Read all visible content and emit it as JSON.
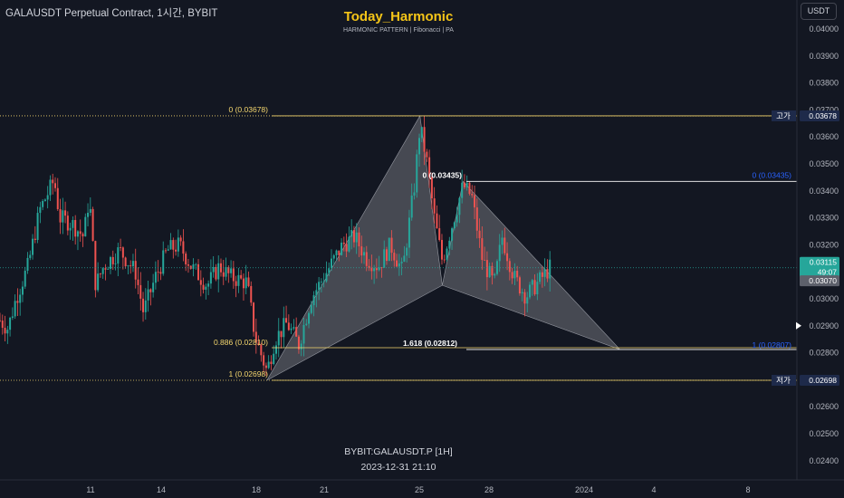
{
  "header": {
    "symbol_line": "GALAUSDT Perpetual Contract, 1시간, BYBIT",
    "title": "Today_Harmonic",
    "subtitle": "HARMONIC PATTERN | Fibonacci | PA",
    "currency_button": "USDT"
  },
  "watermark": {
    "line1": "BYBIT:GALAUSDT.P [1H]",
    "line2": "2023-12-31 21:10"
  },
  "price_axis": {
    "labels": [
      "0.04000",
      "0.03900",
      "0.03800",
      "0.03700",
      "0.03600",
      "0.03500",
      "0.03400",
      "0.03300",
      "0.03200",
      "0.03100",
      "0.03000",
      "0.02900",
      "0.02800",
      "0.02700",
      "0.02600",
      "0.02500",
      "0.02400"
    ]
  },
  "price_tags": {
    "high": {
      "name": "고가",
      "value": "0.03678"
    },
    "low": {
      "name": "저가",
      "value": "0.02698"
    },
    "last": {
      "value": "0.03115",
      "countdown": "49:07"
    },
    "prev": {
      "value": "0.03070"
    }
  },
  "time_axis": {
    "labels": [
      "11",
      "14",
      "18",
      "21",
      "25",
      "28",
      "2024",
      "4",
      "8"
    ]
  },
  "fib_labels": {
    "top_left": "0 (0.03678)",
    "mid_left": "0.886 (0.02810)",
    "bottom_left": "1 (0.02698)",
    "c_level": "0 (0.03435)",
    "d_level": "1.618 (0.02812)",
    "right_top": "0 (0.03435)",
    "right_bottom": "1 (0.02807)"
  },
  "chart_data": {
    "type": "candlestick",
    "symbol": "GALAUSDT",
    "interval": "1시간",
    "ylim": [
      0.0235,
      0.0408
    ],
    "high": 0.03678,
    "low": 0.02698,
    "last": 0.03115,
    "pattern_points": [
      {
        "t": 0.335,
        "price": 0.02698
      },
      {
        "t": 0.527,
        "price": 0.03678
      },
      {
        "t": 0.555,
        "price": 0.0305
      },
      {
        "t": 0.581,
        "price": 0.03435
      },
      {
        "t": 0.778,
        "price": 0.02812
      }
    ],
    "price_path": [
      [
        0.0,
        0.0292
      ],
      [
        0.01,
        0.0289
      ],
      [
        0.02,
        0.03
      ],
      [
        0.035,
        0.0312
      ],
      [
        0.05,
        0.0333
      ],
      [
        0.068,
        0.0344
      ],
      [
        0.075,
        0.033
      ],
      [
        0.09,
        0.0328
      ],
      [
        0.105,
        0.0323
      ],
      [
        0.112,
        0.0338
      ],
      [
        0.12,
        0.0305
      ],
      [
        0.13,
        0.0312
      ],
      [
        0.15,
        0.0318
      ],
      [
        0.17,
        0.031
      ],
      [
        0.18,
        0.0295
      ],
      [
        0.195,
        0.0308
      ],
      [
        0.21,
        0.0318
      ],
      [
        0.225,
        0.032
      ],
      [
        0.24,
        0.0312
      ],
      [
        0.26,
        0.0305
      ],
      [
        0.275,
        0.0312
      ],
      [
        0.29,
        0.0308
      ],
      [
        0.31,
        0.0306
      ],
      [
        0.32,
        0.0286
      ],
      [
        0.335,
        0.0273
      ],
      [
        0.345,
        0.0285
      ],
      [
        0.36,
        0.0291
      ],
      [
        0.375,
        0.0283
      ],
      [
        0.39,
        0.03
      ],
      [
        0.41,
        0.031
      ],
      [
        0.43,
        0.032
      ],
      [
        0.445,
        0.0323
      ],
      [
        0.46,
        0.0315
      ],
      [
        0.475,
        0.0312
      ],
      [
        0.49,
        0.032
      ],
      [
        0.505,
        0.031
      ],
      [
        0.52,
        0.0342
      ],
      [
        0.527,
        0.0364
      ],
      [
        0.535,
        0.0352
      ],
      [
        0.545,
        0.033
      ],
      [
        0.555,
        0.0314
      ],
      [
        0.565,
        0.0325
      ],
      [
        0.581,
        0.0342
      ],
      [
        0.592,
        0.0338
      ],
      [
        0.605,
        0.0315
      ],
      [
        0.62,
        0.0305
      ],
      [
        0.63,
        0.0323
      ],
      [
        0.645,
        0.0308
      ],
      [
        0.66,
        0.0301
      ],
      [
        0.675,
        0.0306
      ],
      [
        0.69,
        0.03115
      ]
    ]
  },
  "colors": {
    "background": "#131722",
    "up": "#26a69a",
    "down": "#ef5350",
    "fib_yellow": "#f5d76e",
    "fib_blue": "#2962ff",
    "pattern_fill": "#ffffff"
  }
}
